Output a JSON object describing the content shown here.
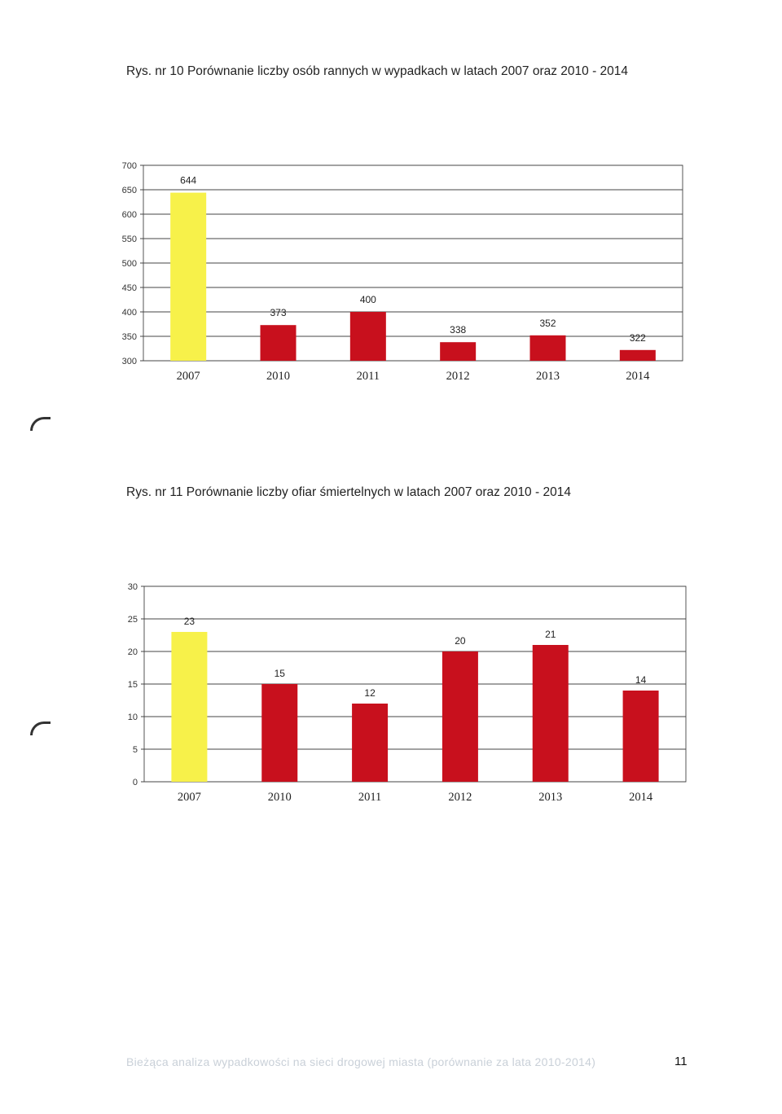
{
  "page": {
    "footer_text": "Bieżąca analiza wypadkowości na sieci drogowej miasta (porównanie za lata 2010-2014)",
    "page_number": "11"
  },
  "colors": {
    "highlight_bar": "#f7f14a",
    "bar": "#c8101d",
    "grid": "#444444"
  },
  "chart_data": [
    {
      "type": "bar",
      "title": "Rys. nr 10 Porównanie liczby osób rannych w wypadkach w latach 2007 oraz 2010 - 2014",
      "categories": [
        "2007",
        "2010",
        "2011",
        "2012",
        "2013",
        "2014"
      ],
      "values": [
        644,
        373,
        400,
        338,
        352,
        322
      ],
      "data_labels": [
        "644",
        "373",
        "400",
        "338",
        "352",
        "322"
      ],
      "bar_colors": [
        "#f7f14a",
        "#c8101d",
        "#c8101d",
        "#c8101d",
        "#c8101d",
        "#c8101d"
      ],
      "ylim": [
        300,
        700
      ],
      "yticks": [
        300,
        350,
        400,
        450,
        500,
        550,
        600,
        650,
        700
      ],
      "xlabel": "",
      "ylabel": "",
      "grid": true,
      "legend": false
    },
    {
      "type": "bar",
      "title": "Rys. nr 11 Porównanie liczby ofiar śmiertelnych w latach 2007 oraz 2010 - 2014",
      "categories": [
        "2007",
        "2010",
        "2011",
        "2012",
        "2013",
        "2014"
      ],
      "values": [
        23,
        15,
        12,
        20,
        21,
        14
      ],
      "data_labels": [
        "23",
        "15",
        "12",
        "20",
        "21",
        "14"
      ],
      "bar_colors": [
        "#f7f14a",
        "#c8101d",
        "#c8101d",
        "#c8101d",
        "#c8101d",
        "#c8101d"
      ],
      "ylim": [
        0,
        30
      ],
      "yticks": [
        0,
        5,
        10,
        15,
        20,
        25,
        30
      ],
      "xlabel": "",
      "ylabel": "",
      "grid": true,
      "legend": false
    }
  ]
}
